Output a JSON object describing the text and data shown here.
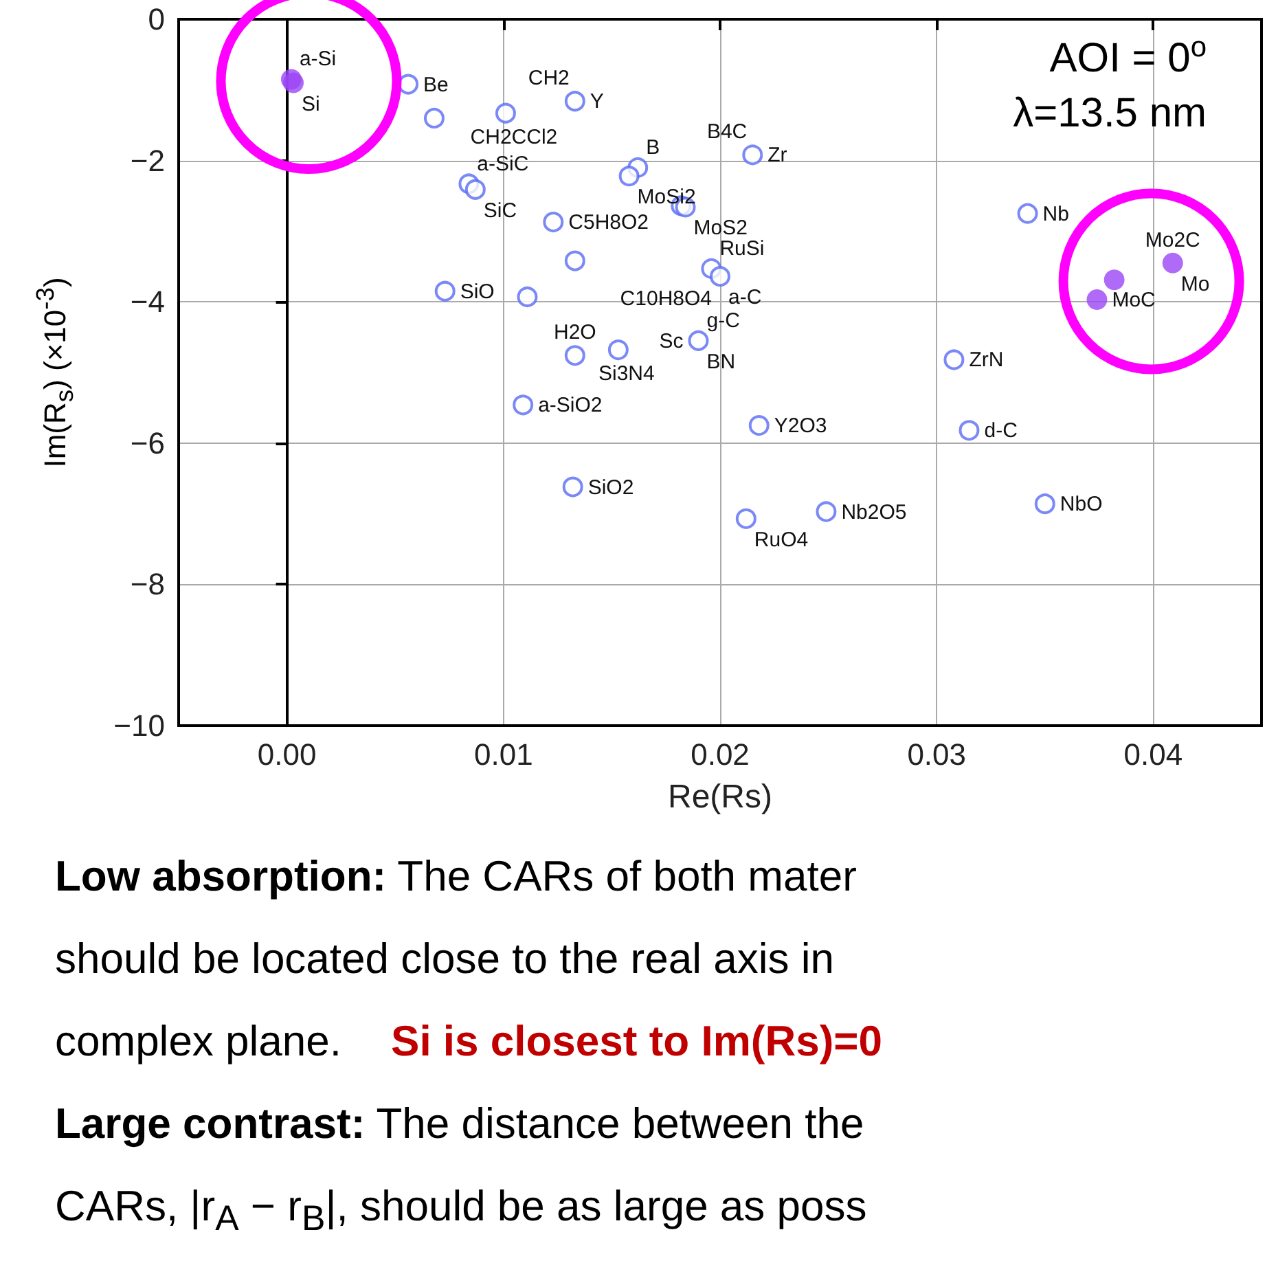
{
  "chart_data": {
    "type": "scatter",
    "xlabel": "Re(Rs)",
    "ylabel": "Im(R$_{s}$) (×10$^{-3}$)",
    "xlim": [
      -0.005,
      0.045
    ],
    "xticks": [
      {
        "value": 0,
        "label": "0.00"
      },
      {
        "value": 0.01,
        "label": "0.01"
      },
      {
        "value": 0.02,
        "label": "0.02"
      },
      {
        "value": 0.03,
        "label": "0.03"
      },
      {
        "value": 0.04,
        "label": "0.04"
      }
    ],
    "ylim": [
      -10,
      0
    ],
    "yticks": [
      {
        "value": -10,
        "label": "−10"
      },
      {
        "value": -8,
        "label": "−8"
      },
      {
        "value": -6,
        "label": "−6"
      },
      {
        "value": -4,
        "label": "−4"
      },
      {
        "value": -2,
        "label": "−2"
      },
      0
    ],
    "grid": true,
    "marker": "circle",
    "series": [
      {
        "color": "#5a6cf5",
        "x": [
          0.0056,
          0.0101,
          0.0068,
          0.0133,
          0.0162,
          0.0158,
          0.0215,
          0.0084,
          0.0087,
          0.0182,
          0.0184,
          0.0123,
          0.0133,
          0.0196,
          0.02,
          0.0073,
          0.0111,
          0.0133,
          0.0153,
          0.019,
          0.0109,
          0.0218,
          0.0132,
          0.0212,
          0.0342,
          0.0308,
          0.0315,
          0.035,
          0.0249
        ],
        "values": [
          -0.92,
          -1.33,
          -1.4,
          -1.16,
          -2.1,
          -2.22,
          -1.92,
          -2.33,
          -2.41,
          -2.64,
          -2.66,
          -2.87,
          -3.42,
          -3.53,
          -3.64,
          -3.85,
          -3.93,
          -4.76,
          -4.68,
          -4.55,
          -5.46,
          -5.75,
          -6.62,
          -7.07,
          -2.75,
          -4.82,
          -5.82,
          -6.86,
          -6.97
        ]
      },
      {
        "color": "#9b45f5",
        "x": [
          0.0002,
          0.0003,
          0.0409,
          0.0382,
          0.0374
        ],
        "values": [
          -0.85,
          -0.9,
          -3.45,
          -3.69,
          -3.97
        ]
      }
    ],
    "annotations": [
      "AOI = 0$^{o}$",
      "λ=13.5 nm",
      {
        "text": "a-Si",
        "x": 0.0002,
        "y": -0.85
      },
      {
        "text": "Si",
        "x": 0.0003,
        "y": -0.9
      },
      {
        "text": "Be",
        "x": 0.0056,
        "y": -0.92
      },
      {
        "text": "CH2",
        "x": 0.0133,
        "y": -1.16
      },
      {
        "text": "Y",
        "x": 0.0133,
        "y": -1.16
      },
      {
        "text": "CH2CCl2",
        "x": 0.0101,
        "y": -1.33
      },
      {
        "text": "B4C",
        "x": 0.0215,
        "y": -1.92
      },
      {
        "text": "Zr",
        "x": 0.0215,
        "y": -1.92
      },
      {
        "text": "B",
        "x": 0.0162,
        "y": -2.1
      },
      {
        "text": "a-SiC",
        "x": 0.0084,
        "y": -2.33
      },
      {
        "text": "MoSi2",
        "x": 0.0158,
        "y": -2.22
      },
      {
        "text": "SiC",
        "x": 0.0087,
        "y": -2.41
      },
      {
        "text": "C5H8O2",
        "x": 0.0123,
        "y": -2.87
      },
      {
        "text": "MoS2",
        "x": 0.0184,
        "y": -2.66
      },
      {
        "text": "RuSi",
        "x": 0.0196,
        "y": -3.53
      },
      {
        "text": "SiO",
        "x": 0.0073,
        "y": -3.85
      },
      {
        "text": "C10H8O4",
        "x": 0.02,
        "y": -3.64
      },
      {
        "text": "a-C",
        "x": 0.02,
        "y": -3.64
      },
      {
        "text": "H2O",
        "x": 0.0133,
        "y": -4.76
      },
      {
        "text": "Sc",
        "x": 0.019,
        "y": -4.55
      },
      {
        "text": "g-C",
        "x": 0.019,
        "y": -4.55
      },
      {
        "text": "Si3N4",
        "x": 0.0153,
        "y": -4.68
      },
      {
        "text": "BN",
        "x": 0.019,
        "y": -4.55
      },
      {
        "text": "a-SiO2",
        "x": 0.0109,
        "y": -5.46
      },
      {
        "text": "Y2O3",
        "x": 0.0218,
        "y": -5.75
      },
      {
        "text": "SiO2",
        "x": 0.0132,
        "y": -6.62
      },
      {
        "text": "RuO4",
        "x": 0.0212,
        "y": -7.07
      },
      {
        "text": "Nb",
        "x": 0.0342,
        "y": -2.75
      },
      {
        "text": "Mo2C",
        "x": 0.0409,
        "y": -3.45
      },
      {
        "text": "Mo",
        "x": 0.0409,
        "y": -3.45
      },
      {
        "text": "MoC",
        "x": 0.0374,
        "y": -3.97
      },
      {
        "text": "ZrN",
        "x": 0.0308,
        "y": -4.82
      },
      {
        "text": "d-C",
        "x": 0.0315,
        "y": -5.82
      },
      {
        "text": "NbO",
        "x": 0.035,
        "y": -6.86
      },
      {
        "text": "Nb2O5",
        "x": 0.0249,
        "y": -6.97
      },
      "Low absorption: The CARs of both mater",
      "should be located close to the real axis in",
      "complex plane.",
      "Si is closest to Im(Rs)=0",
      "Large contrast: The distance between the",
      "CARs, |r$_{A}$ − r$_{B}$|, should be as large as poss"
    ]
  }
}
